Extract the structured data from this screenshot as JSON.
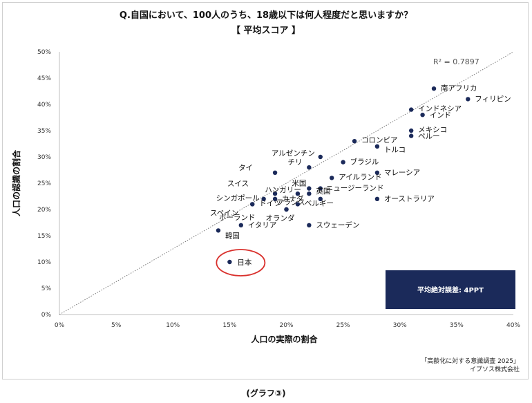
{
  "title_line1": "Q.自国において、100人のうち、18歳以下は何人程度だと思いますか？",
  "title_line2": "【 平均スコア 】",
  "source_line1": "「高齢化に対する意識調査 2025」",
  "source_line2": "イプソス株式会社",
  "caption": "(グラフ③)",
  "colors": {
    "point": "#1b2a5a",
    "box": "#1b2a5a",
    "highlight_circle": "#d9302c",
    "trend": "#777777"
  },
  "chart_data": {
    "type": "scatter",
    "xlabel": "人口の実際の割合",
    "ylabel": "人口の認識の割合",
    "xlim": [
      0,
      40
    ],
    "ylim": [
      0,
      50
    ],
    "xticks": [
      "0%",
      "5%",
      "10%",
      "15%",
      "20%",
      "25%",
      "30%",
      "35%",
      "40%"
    ],
    "yticks": [
      "0%",
      "5%",
      "10%",
      "15%",
      "20%",
      "25%",
      "30%",
      "35%",
      "40%",
      "45%",
      "50%"
    ],
    "r2_label": "R² = 0.7897",
    "trendline": {
      "from": [
        0,
        0
      ],
      "to": [
        40,
        50
      ],
      "style": "dotted"
    },
    "annotation_box": "平均絶対誤差: 4PPT",
    "highlighted": "日本",
    "points": [
      {
        "label": "南アフリカ",
        "x": 33,
        "y": 43,
        "anchor": "right"
      },
      {
        "label": "フィリピン",
        "x": 36,
        "y": 41,
        "anchor": "right"
      },
      {
        "label": "インドネシア",
        "x": 31,
        "y": 39,
        "anchor": "right"
      },
      {
        "label": "インド",
        "x": 32,
        "y": 38,
        "anchor": "right"
      },
      {
        "label": "メキシコ",
        "x": 31,
        "y": 35,
        "anchor": "right"
      },
      {
        "label": "ペルー",
        "x": 31,
        "y": 34,
        "anchor": "right"
      },
      {
        "label": "コロンビア",
        "x": 26,
        "y": 33,
        "anchor": "right"
      },
      {
        "label": "トルコ",
        "x": 28,
        "y": 32,
        "anchor": "right"
      },
      {
        "label": "アルゼンチン",
        "x": 23,
        "y": 30,
        "anchor": "left"
      },
      {
        "label": "ブラジル",
        "x": 25,
        "y": 29,
        "anchor": "right"
      },
      {
        "label": "チリ",
        "x": 22,
        "y": 28,
        "anchor": "left"
      },
      {
        "label": "タイ",
        "x": 19,
        "y": 27,
        "anchor": "left"
      },
      {
        "label": "マレーシア",
        "x": 28,
        "y": 27,
        "anchor": "right"
      },
      {
        "label": "アイルランド",
        "x": 24,
        "y": 26,
        "anchor": "right"
      },
      {
        "label": "米国",
        "x": 22,
        "y": 24,
        "anchor": "left"
      },
      {
        "label": "ニュージーランド",
        "x": 23,
        "y": 24,
        "anchor": "right"
      },
      {
        "label": "スイス",
        "x": 19,
        "y": 23,
        "anchor": "left"
      },
      {
        "label": "ハンガリー",
        "x": 21,
        "y": 23,
        "anchor": "left"
      },
      {
        "label": "英国",
        "x": 22,
        "y": 23,
        "anchor": "right"
      },
      {
        "label": "シンガポール",
        "x": 18,
        "y": 22,
        "anchor": "left"
      },
      {
        "label": "カナダ",
        "x": 19,
        "y": 22,
        "anchor": "right"
      },
      {
        "label": "フランス",
        "x": 23,
        "y": 22,
        "anchor": "left"
      },
      {
        "label": "オーストラリア",
        "x": 28,
        "y": 22,
        "anchor": "right"
      },
      {
        "label": "ドイツ",
        "x": 17,
        "y": 21,
        "anchor": "right"
      },
      {
        "label": "ベルギー",
        "x": 21,
        "y": 21,
        "anchor": "right"
      },
      {
        "label": "スペイン",
        "x": 17,
        "y": 21,
        "anchor": "left"
      },
      {
        "label": "オランダ",
        "x": 20,
        "y": 20,
        "anchor": "right"
      },
      {
        "label": "ポーランド",
        "x": 20,
        "y": 20,
        "anchor": "left"
      },
      {
        "label": "イタリア",
        "x": 16,
        "y": 17,
        "anchor": "right"
      },
      {
        "label": "スウェーデン",
        "x": 22,
        "y": 17,
        "anchor": "right"
      },
      {
        "label": "韓国",
        "x": 14,
        "y": 16,
        "anchor": "right"
      },
      {
        "label": "日本",
        "x": 15,
        "y": 10,
        "anchor": "right"
      }
    ]
  }
}
